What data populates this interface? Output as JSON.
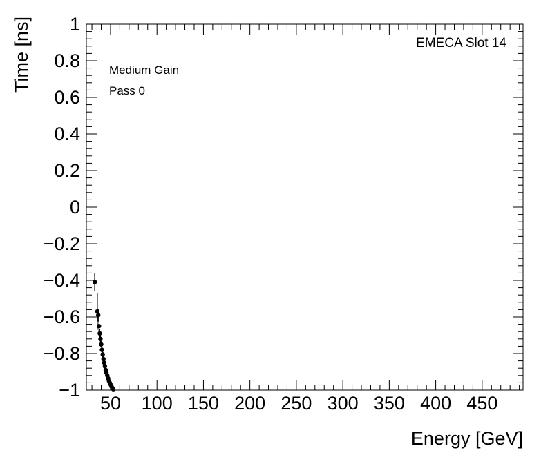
{
  "figure": {
    "ylabel": "Time [ns]",
    "xlabel": "Energy [GeV]",
    "corner_label": "EMECA Slot 14",
    "annotation_line1": "Medium Gain",
    "annotation_line2": "Pass 0"
  },
  "chart_data": {
    "type": "scatter",
    "title": "",
    "xlabel": "Energy [GeV]",
    "ylabel": "Time [ns]",
    "xlim": [
      24,
      494
    ],
    "ylim": [
      -1,
      1
    ],
    "xticks": [
      50,
      100,
      150,
      200,
      250,
      300,
      350,
      400,
      450
    ],
    "yticks": [
      1,
      0.8,
      0.6,
      0.4,
      0.2,
      0,
      -0.2,
      -0.4,
      -0.6,
      -0.8,
      -1
    ],
    "ytick_labels": [
      "1",
      "0.8",
      "0.6",
      "0.4",
      "0.2",
      "0",
      "−0.2",
      "−0.4",
      "−0.6",
      "−0.8",
      "−1"
    ],
    "x_minor_step": 10,
    "y_minor_step": 0.04,
    "grid": false,
    "legend": "none",
    "marker_color": "#000000",
    "annotations": [
      "EMECA Slot 14",
      "Medium Gain",
      "Pass 0"
    ],
    "points_format": "[energy_GeV, time_ns, time_err_ns]",
    "points": [
      [
        33.0,
        -0.41,
        0.05
      ],
      [
        35.8,
        -0.57,
        0.1
      ],
      [
        36.8,
        -0.59,
        0.035
      ],
      [
        37.6,
        -0.65,
        0.03
      ],
      [
        38.4,
        -0.69,
        0.025
      ],
      [
        39.2,
        -0.72,
        0.02
      ],
      [
        40.0,
        -0.75,
        0.018
      ],
      [
        40.8,
        -0.78,
        0.016
      ],
      [
        41.6,
        -0.805,
        0.014
      ],
      [
        42.4,
        -0.83,
        0.013
      ],
      [
        43.2,
        -0.85,
        0.012
      ],
      [
        44.0,
        -0.87,
        0.011
      ],
      [
        44.8,
        -0.89,
        0.01
      ],
      [
        45.6,
        -0.905,
        0.009
      ],
      [
        46.5,
        -0.92,
        0.009
      ],
      [
        47.4,
        -0.935,
        0.008
      ],
      [
        48.3,
        -0.95,
        0.008
      ],
      [
        49.2,
        -0.96,
        0.007
      ],
      [
        50.1,
        -0.97,
        0.007
      ],
      [
        51.0,
        -0.98,
        0.006
      ],
      [
        52.0,
        -0.988,
        0.006
      ],
      [
        53.0,
        -0.995,
        0.005
      ]
    ]
  }
}
